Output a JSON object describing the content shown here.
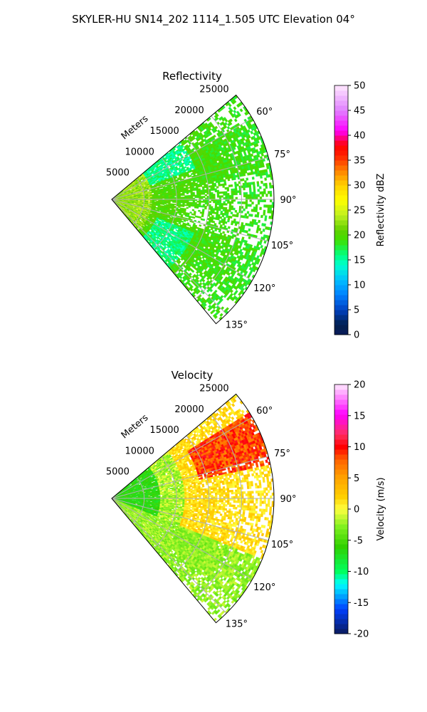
{
  "suptitle": "SKYLER-HU  SN14_202  1114_1.505 UTC Elevation 04°",
  "chart_data": [
    {
      "type": "heatmap",
      "projection": "polar sector",
      "title": "Reflectivity",
      "radial_label": "Meters",
      "radial_ticks": [
        "5000",
        "10000",
        "15000",
        "20000",
        "25000"
      ],
      "range_max": 25000,
      "azimuth_ticks": [
        "60°",
        "75°",
        "90°",
        "105°",
        "120°",
        "135°"
      ],
      "azimuth_range_deg": [
        50,
        140
      ],
      "grid": true,
      "colorbar": {
        "label": "Reflectivity dBZ",
        "min": 0,
        "max": 50,
        "ticks": [
          "0",
          "5",
          "10",
          "15",
          "20",
          "25",
          "30",
          "35",
          "40",
          "45",
          "50"
        ]
      },
      "description_of_field": "echoes mostly 12-24 dBZ out to ~25000 m",
      "colors": {
        "c0": "#0a1a5c",
        "c2": "#00204d",
        "c4": "#0040c0",
        "c6": "#0080ff",
        "c10": "#00c0ff",
        "c13": "#00ffd0",
        "c15": "#00ff80",
        "c18": "#40e000",
        "c20": "#60d000",
        "c23": "#c0f020",
        "c25": "#ffff00",
        "c28": "#ffd000",
        "c32": "#ff8000",
        "c35": "#ff2000",
        "c38": "#ff0000",
        "c40": "#ff00ff",
        "c45": "#e080ff",
        "c50": "#ffe8ff"
      }
    },
    {
      "type": "heatmap",
      "projection": "polar sector",
      "title": "Velocity",
      "radial_label": "Meters",
      "radial_ticks": [
        "5000",
        "10000",
        "15000",
        "20000",
        "25000"
      ],
      "range_max": 25000,
      "azimuth_ticks": [
        "60°",
        "75°",
        "90°",
        "105°",
        "120°",
        "135°"
      ],
      "azimuth_range_deg": [
        50,
        140
      ],
      "grid": true,
      "colorbar": {
        "label": "Velocity (m/s)",
        "min": -20,
        "max": 20,
        "ticks": [
          "-20",
          "-15",
          "-10",
          "-5",
          "0",
          "5",
          "10",
          "15",
          "20"
        ]
      },
      "description_of_field": "negative (green) velocities near radar, positive (yellow-orange-red) to north-east",
      "colors": {
        "v_neg20": "#0a1a5c",
        "v_neg15": "#0040ff",
        "v_neg12": "#00ffff",
        "v_neg10": "#00ff60",
        "v_neg6": "#30d000",
        "v_neg3": "#80f020",
        "v_0": "#ffff40",
        "v_2": "#ffd000",
        "v_5": "#ffa000",
        "v_8": "#ff6000",
        "v_10": "#ff0000",
        "v_12": "#ff3060",
        "v_15": "#ff00ff",
        "v_20": "#ffe8ff"
      }
    }
  ]
}
